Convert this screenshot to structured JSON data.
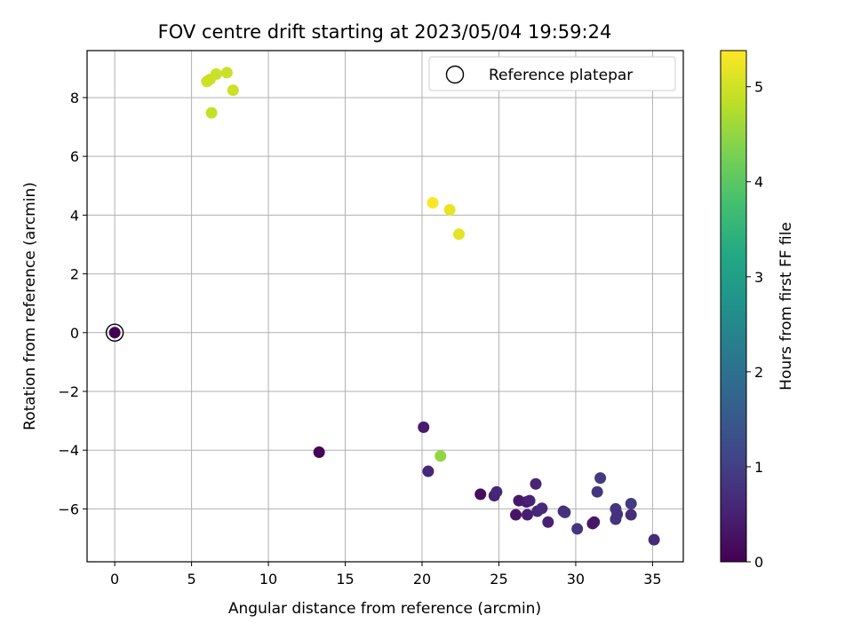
{
  "chart_data": {
    "type": "scatter",
    "title": "FOV centre drift starting at 2023/05/04 19:59:24",
    "xlabel": "Angular distance from reference (arcmin)",
    "ylabel": "Rotation from reference (arcmin)",
    "xlim": [
      -1.8,
      37.0
    ],
    "ylim": [
      -7.8,
      9.6
    ],
    "xticks": [
      0,
      5,
      10,
      15,
      20,
      25,
      30,
      35
    ],
    "yticks": [
      -6,
      -4,
      -2,
      0,
      2,
      4,
      6,
      8
    ],
    "grid": true,
    "legend": {
      "position": "top-right",
      "entries": [
        {
          "label": "Reference platepar",
          "marker": "open-circle"
        }
      ]
    },
    "colorbar": {
      "label": "Hours from first FF file",
      "colormap": "viridis",
      "range": [
        0,
        5.38
      ],
      "ticks": [
        0,
        1,
        2,
        3,
        4,
        5
      ]
    },
    "reference_point": {
      "x": 0,
      "y": 0
    },
    "points": [
      {
        "x": 0.0,
        "y": 0.0,
        "hours": 0.0
      },
      {
        "x": 13.3,
        "y": -4.07,
        "hours": 0.05
      },
      {
        "x": 20.1,
        "y": -3.22,
        "hours": 0.4
      },
      {
        "x": 20.4,
        "y": -4.72,
        "hours": 0.6
      },
      {
        "x": 21.2,
        "y": -4.2,
        "hours": 4.5
      },
      {
        "x": 23.8,
        "y": -5.5,
        "hours": 0.2
      },
      {
        "x": 24.7,
        "y": -5.55,
        "hours": 0.5
      },
      {
        "x": 24.85,
        "y": -5.42,
        "hours": 0.6
      },
      {
        "x": 26.1,
        "y": -6.2,
        "hours": 0.3
      },
      {
        "x": 26.3,
        "y": -5.72,
        "hours": 0.35
      },
      {
        "x": 26.8,
        "y": -5.76,
        "hours": 0.4
      },
      {
        "x": 26.85,
        "y": -6.2,
        "hours": 0.45
      },
      {
        "x": 27.0,
        "y": -5.72,
        "hours": 0.5
      },
      {
        "x": 27.4,
        "y": -5.15,
        "hours": 0.55
      },
      {
        "x": 27.5,
        "y": -6.08,
        "hours": 0.6
      },
      {
        "x": 27.8,
        "y": -5.98,
        "hours": 0.65
      },
      {
        "x": 28.2,
        "y": -6.45,
        "hours": 0.5
      },
      {
        "x": 29.2,
        "y": -6.08,
        "hours": 0.7
      },
      {
        "x": 29.3,
        "y": -6.12,
        "hours": 0.75
      },
      {
        "x": 30.1,
        "y": -6.68,
        "hours": 0.8
      },
      {
        "x": 31.1,
        "y": -6.5,
        "hours": 0.3
      },
      {
        "x": 31.2,
        "y": -6.45,
        "hours": 0.35
      },
      {
        "x": 31.4,
        "y": -5.42,
        "hours": 0.85
      },
      {
        "x": 31.6,
        "y": -4.95,
        "hours": 0.9
      },
      {
        "x": 32.6,
        "y": -6.0,
        "hours": 0.85
      },
      {
        "x": 32.6,
        "y": -6.35,
        "hours": 0.8
      },
      {
        "x": 32.7,
        "y": -6.18,
        "hours": 0.75
      },
      {
        "x": 33.6,
        "y": -5.82,
        "hours": 0.9
      },
      {
        "x": 33.6,
        "y": -6.2,
        "hours": 0.7
      },
      {
        "x": 35.1,
        "y": -7.05,
        "hours": 0.65
      },
      {
        "x": 6.0,
        "y": 8.55,
        "hours": 4.95
      },
      {
        "x": 6.2,
        "y": 8.62,
        "hours": 4.95
      },
      {
        "x": 6.6,
        "y": 8.8,
        "hours": 4.95
      },
      {
        "x": 7.3,
        "y": 8.85,
        "hours": 4.95
      },
      {
        "x": 7.7,
        "y": 8.25,
        "hours": 4.95
      },
      {
        "x": 6.3,
        "y": 7.48,
        "hours": 4.9
      },
      {
        "x": 20.7,
        "y": 4.42,
        "hours": 5.35
      },
      {
        "x": 21.8,
        "y": 4.18,
        "hours": 5.2
      },
      {
        "x": 22.4,
        "y": 3.35,
        "hours": 5.15
      }
    ]
  }
}
